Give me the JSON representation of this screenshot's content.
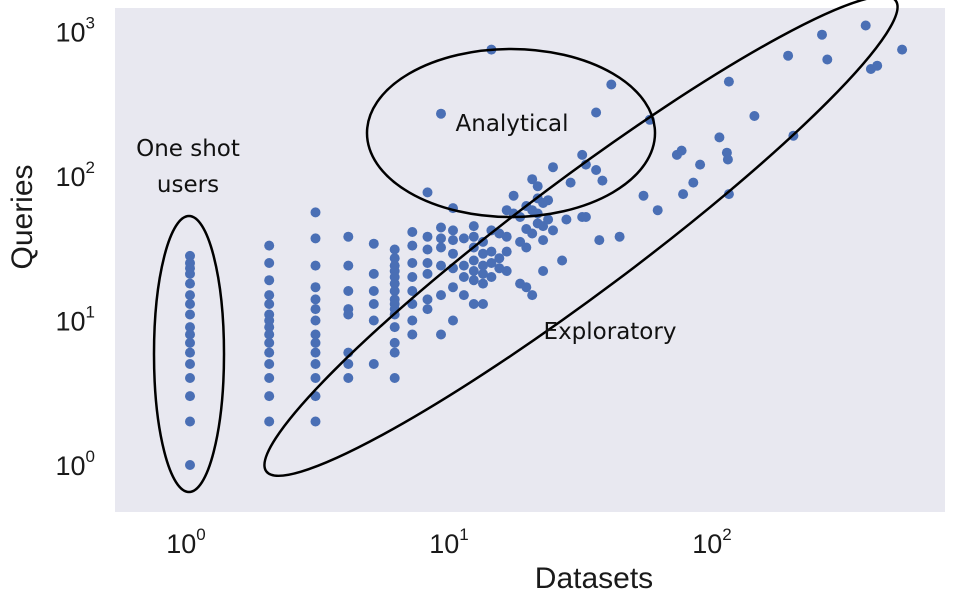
{
  "chart_data": {
    "type": "scatter",
    "title": "",
    "xlabel": "Datasets",
    "ylabel": "Queries",
    "xscale": "log",
    "yscale": "log",
    "xlim": [
      0.5,
      900
    ],
    "ylim": [
      0.5,
      1300
    ],
    "grid": false,
    "x_ticks": [
      {
        "value": 1,
        "base": "10",
        "exp": "0"
      },
      {
        "value": 10,
        "base": "10",
        "exp": "1"
      },
      {
        "value": 100,
        "base": "10",
        "exp": "2"
      }
    ],
    "y_ticks": [
      {
        "value": 1,
        "base": "10",
        "exp": "0"
      },
      {
        "value": 10,
        "base": "10",
        "exp": "1"
      },
      {
        "value": 100,
        "base": "10",
        "exp": "2"
      },
      {
        "value": 1000,
        "base": "10",
        "exp": "3"
      }
    ],
    "colors": {
      "point": "#4a6fb5",
      "plot_background": "#e8e8f0",
      "outline": "#000000"
    },
    "annotations": [
      {
        "text": "One shot users",
        "lines": [
          "One shot",
          "users"
        ]
      },
      {
        "text": "Analytical",
        "lines": [
          "Analytical"
        ]
      },
      {
        "text": "Exploratory",
        "lines": [
          "Exploratory"
        ]
      }
    ],
    "points": [
      {
        "x": 1,
        "y": 28
      },
      {
        "x": 1,
        "y": 25
      },
      {
        "x": 1,
        "y": 23
      },
      {
        "x": 1,
        "y": 21
      },
      {
        "x": 1,
        "y": 18
      },
      {
        "x": 1,
        "y": 15
      },
      {
        "x": 1,
        "y": 13
      },
      {
        "x": 1,
        "y": 11
      },
      {
        "x": 1,
        "y": 9
      },
      {
        "x": 1,
        "y": 8
      },
      {
        "x": 1,
        "y": 7
      },
      {
        "x": 1,
        "y": 6
      },
      {
        "x": 1,
        "y": 5
      },
      {
        "x": 1,
        "y": 4
      },
      {
        "x": 1,
        "y": 3
      },
      {
        "x": 1,
        "y": 2
      },
      {
        "x": 1,
        "y": 1
      },
      {
        "x": 2,
        "y": 33
      },
      {
        "x": 2,
        "y": 25
      },
      {
        "x": 2,
        "y": 19
      },
      {
        "x": 2,
        "y": 15
      },
      {
        "x": 2,
        "y": 13
      },
      {
        "x": 2,
        "y": 11
      },
      {
        "x": 2,
        "y": 10
      },
      {
        "x": 2,
        "y": 9
      },
      {
        "x": 2,
        "y": 8
      },
      {
        "x": 2,
        "y": 7
      },
      {
        "x": 2,
        "y": 6
      },
      {
        "x": 2,
        "y": 5
      },
      {
        "x": 2,
        "y": 4
      },
      {
        "x": 2,
        "y": 3
      },
      {
        "x": 2,
        "y": 2
      },
      {
        "x": 3,
        "y": 56
      },
      {
        "x": 3,
        "y": 37
      },
      {
        "x": 3,
        "y": 24
      },
      {
        "x": 3,
        "y": 17
      },
      {
        "x": 3,
        "y": 14
      },
      {
        "x": 3,
        "y": 12
      },
      {
        "x": 3,
        "y": 10
      },
      {
        "x": 3,
        "y": 8
      },
      {
        "x": 3,
        "y": 7
      },
      {
        "x": 3,
        "y": 6
      },
      {
        "x": 3,
        "y": 5
      },
      {
        "x": 3,
        "y": 4
      },
      {
        "x": 3,
        "y": 3
      },
      {
        "x": 3,
        "y": 2
      },
      {
        "x": 4,
        "y": 38
      },
      {
        "x": 4,
        "y": 24
      },
      {
        "x": 4,
        "y": 16
      },
      {
        "x": 4,
        "y": 12
      },
      {
        "x": 4,
        "y": 11
      },
      {
        "x": 4,
        "y": 6
      },
      {
        "x": 4,
        "y": 5
      },
      {
        "x": 4,
        "y": 4
      },
      {
        "x": 5,
        "y": 34
      },
      {
        "x": 5,
        "y": 21
      },
      {
        "x": 5,
        "y": 16
      },
      {
        "x": 5,
        "y": 13
      },
      {
        "x": 5,
        "y": 10
      },
      {
        "x": 5,
        "y": 5
      },
      {
        "x": 6,
        "y": 31
      },
      {
        "x": 6,
        "y": 27
      },
      {
        "x": 6,
        "y": 24
      },
      {
        "x": 6,
        "y": 22
      },
      {
        "x": 6,
        "y": 20
      },
      {
        "x": 6,
        "y": 18
      },
      {
        "x": 6,
        "y": 16
      },
      {
        "x": 6,
        "y": 14
      },
      {
        "x": 6,
        "y": 13
      },
      {
        "x": 6,
        "y": 12
      },
      {
        "x": 6,
        "y": 11
      },
      {
        "x": 6,
        "y": 9
      },
      {
        "x": 6,
        "y": 7
      },
      {
        "x": 6,
        "y": 6
      },
      {
        "x": 6,
        "y": 4
      },
      {
        "x": 7,
        "y": 41
      },
      {
        "x": 7,
        "y": 33
      },
      {
        "x": 7,
        "y": 25
      },
      {
        "x": 7,
        "y": 20
      },
      {
        "x": 7,
        "y": 16
      },
      {
        "x": 7,
        "y": 13
      },
      {
        "x": 7,
        "y": 10
      },
      {
        "x": 7,
        "y": 8
      },
      {
        "x": 8,
        "y": 77
      },
      {
        "x": 8,
        "y": 38
      },
      {
        "x": 8,
        "y": 31
      },
      {
        "x": 8,
        "y": 25
      },
      {
        "x": 8,
        "y": 21
      },
      {
        "x": 8,
        "y": 14
      },
      {
        "x": 8,
        "y": 12
      },
      {
        "x": 9,
        "y": 270
      },
      {
        "x": 9,
        "y": 44
      },
      {
        "x": 9,
        "y": 37
      },
      {
        "x": 9,
        "y": 32
      },
      {
        "x": 9,
        "y": 24
      },
      {
        "x": 9,
        "y": 15
      },
      {
        "x": 9,
        "y": 8
      },
      {
        "x": 10,
        "y": 60
      },
      {
        "x": 10,
        "y": 42
      },
      {
        "x": 10,
        "y": 36
      },
      {
        "x": 10,
        "y": 29
      },
      {
        "x": 10,
        "y": 23
      },
      {
        "x": 10,
        "y": 17
      },
      {
        "x": 10,
        "y": 10
      },
      {
        "x": 11,
        "y": 37
      },
      {
        "x": 11,
        "y": 24
      },
      {
        "x": 11,
        "y": 20
      },
      {
        "x": 11,
        "y": 15
      },
      {
        "x": 12,
        "y": 45
      },
      {
        "x": 12,
        "y": 38
      },
      {
        "x": 12,
        "y": 32
      },
      {
        "x": 12,
        "y": 26
      },
      {
        "x": 12,
        "y": 22
      },
      {
        "x": 12,
        "y": 19
      },
      {
        "x": 12,
        "y": 13
      },
      {
        "x": 13,
        "y": 35
      },
      {
        "x": 13,
        "y": 29
      },
      {
        "x": 13,
        "y": 24
      },
      {
        "x": 13,
        "y": 21
      },
      {
        "x": 13,
        "y": 18
      },
      {
        "x": 13,
        "y": 13
      },
      {
        "x": 14,
        "y": 750
      },
      {
        "x": 14,
        "y": 42
      },
      {
        "x": 14,
        "y": 30
      },
      {
        "x": 14,
        "y": 25
      },
      {
        "x": 14,
        "y": 20
      },
      {
        "x": 15,
        "y": 40
      },
      {
        "x": 15,
        "y": 27
      },
      {
        "x": 15,
        "y": 23
      },
      {
        "x": 16,
        "y": 58
      },
      {
        "x": 16,
        "y": 38
      },
      {
        "x": 16,
        "y": 30
      },
      {
        "x": 16,
        "y": 22
      },
      {
        "x": 17,
        "y": 73
      },
      {
        "x": 17,
        "y": 55
      },
      {
        "x": 18,
        "y": 52
      },
      {
        "x": 18,
        "y": 35
      },
      {
        "x": 18,
        "y": 18
      },
      {
        "x": 19,
        "y": 62
      },
      {
        "x": 19,
        "y": 43
      },
      {
        "x": 19,
        "y": 32
      },
      {
        "x": 19,
        "y": 17
      },
      {
        "x": 20,
        "y": 95
      },
      {
        "x": 20,
        "y": 58
      },
      {
        "x": 20,
        "y": 40
      },
      {
        "x": 20,
        "y": 15
      },
      {
        "x": 21,
        "y": 85
      },
      {
        "x": 21,
        "y": 70
      },
      {
        "x": 21,
        "y": 55
      },
      {
        "x": 21,
        "y": 47
      },
      {
        "x": 22,
        "y": 65
      },
      {
        "x": 22,
        "y": 45
      },
      {
        "x": 22,
        "y": 36
      },
      {
        "x": 22,
        "y": 22
      },
      {
        "x": 23,
        "y": 68
      },
      {
        "x": 23,
        "y": 50
      },
      {
        "x": 24,
        "y": 115
      },
      {
        "x": 24,
        "y": 42
      },
      {
        "x": 26,
        "y": 26
      },
      {
        "x": 27,
        "y": 50
      },
      {
        "x": 28,
        "y": 90
      },
      {
        "x": 31,
        "y": 140
      },
      {
        "x": 31,
        "y": 52
      },
      {
        "x": 32,
        "y": 120
      },
      {
        "x": 32,
        "y": 52
      },
      {
        "x": 35,
        "y": 275
      },
      {
        "x": 35,
        "y": 110
      },
      {
        "x": 36,
        "y": 36
      },
      {
        "x": 37,
        "y": 93
      },
      {
        "x": 40,
        "y": 430
      },
      {
        "x": 43,
        "y": 38
      },
      {
        "x": 53,
        "y": 73
      },
      {
        "x": 56,
        "y": 245
      },
      {
        "x": 60,
        "y": 58
      },
      {
        "x": 71,
        "y": 140
      },
      {
        "x": 74,
        "y": 150
      },
      {
        "x": 75,
        "y": 75
      },
      {
        "x": 82,
        "y": 90
      },
      {
        "x": 87,
        "y": 120
      },
      {
        "x": 103,
        "y": 185
      },
      {
        "x": 110,
        "y": 145
      },
      {
        "x": 111,
        "y": 130
      },
      {
        "x": 112,
        "y": 450
      },
      {
        "x": 112,
        "y": 75
      },
      {
        "x": 140,
        "y": 260
      },
      {
        "x": 188,
        "y": 680
      },
      {
        "x": 197,
        "y": 190
      },
      {
        "x": 253,
        "y": 950
      },
      {
        "x": 265,
        "y": 640
      },
      {
        "x": 371,
        "y": 1100
      },
      {
        "x": 388,
        "y": 550
      },
      {
        "x": 410,
        "y": 580
      },
      {
        "x": 510,
        "y": 750
      }
    ]
  }
}
